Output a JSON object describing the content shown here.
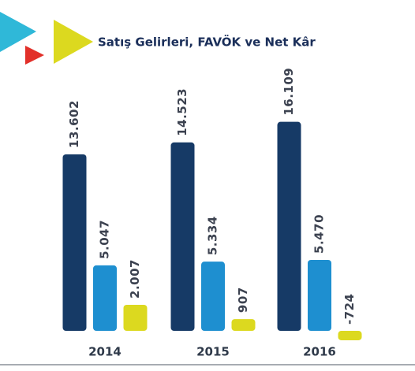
{
  "chart_data": {
    "type": "bar",
    "title": "Satış Gelirleri, FAVÖK ve Net Kâr",
    "categories": [
      "2014",
      "2015",
      "2016"
    ],
    "series": [
      {
        "color": "#163a66",
        "values": [
          13602,
          14523,
          16109
        ],
        "value_labels": [
          "13.602",
          "14.523",
          "16.109"
        ]
      },
      {
        "color": "#1e8fd0",
        "values": [
          5047,
          5334,
          5470
        ],
        "value_labels": [
          "5.047",
          "5.334",
          "5.470"
        ]
      },
      {
        "color": "#dcd91f",
        "values": [
          2007,
          907,
          -724
        ],
        "value_labels": [
          "2.007",
          "907",
          "-724"
        ]
      }
    ],
    "ylim": [
      -2000,
      17000
    ]
  }
}
